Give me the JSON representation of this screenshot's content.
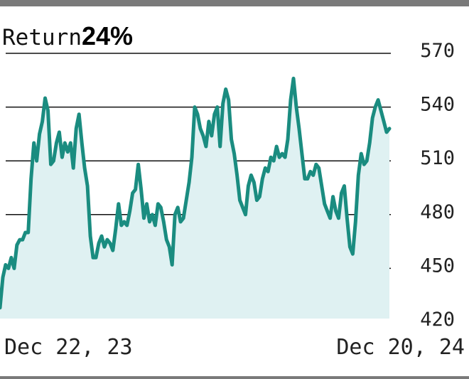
{
  "header": {
    "label": "Return",
    "value": "24%"
  },
  "chart_data": {
    "type": "area",
    "title": "",
    "xlabel": "",
    "ylabel": "",
    "x_tick_labels": [
      "Dec 22, 23",
      "Dec 20, 24"
    ],
    "y_ticks": [
      420,
      450,
      480,
      510,
      540,
      570
    ],
    "ylim": [
      420,
      570
    ],
    "grid": "horizontal",
    "colors": {
      "line": "#1a8c80",
      "fill": "#dff1f2",
      "grid": "#111111"
    },
    "series": [
      {
        "values": [
          428,
          445,
          452,
          450,
          456,
          450,
          463,
          466,
          466,
          470,
          470,
          500,
          520,
          510,
          525,
          532,
          545,
          538,
          508,
          510,
          520,
          526,
          512,
          520,
          515,
          520,
          506,
          528,
          536,
          520,
          506,
          496,
          468,
          456,
          456,
          464,
          468,
          462,
          466,
          464,
          460,
          472,
          486,
          474,
          476,
          474,
          482,
          492,
          494,
          508,
          494,
          478,
          486,
          476,
          480,
          474,
          486,
          484,
          476,
          466,
          462,
          452,
          480,
          484,
          476,
          478,
          488,
          498,
          512,
          540,
          536,
          528,
          524,
          518,
          532,
          524,
          536,
          540,
          518,
          542,
          550,
          544,
          522,
          514,
          502,
          488,
          484,
          480,
          496,
          502,
          498,
          488,
          490,
          500,
          506,
          504,
          512,
          510,
          518,
          512,
          514,
          512,
          522,
          544,
          556,
          540,
          528,
          514,
          500,
          500,
          504,
          502,
          508,
          506,
          496,
          486,
          482,
          478,
          490,
          482,
          478,
          492,
          496,
          478,
          462,
          458,
          476,
          502,
          514,
          508,
          510,
          520,
          534,
          540,
          544,
          538,
          532,
          526,
          528
        ]
      }
    ]
  }
}
